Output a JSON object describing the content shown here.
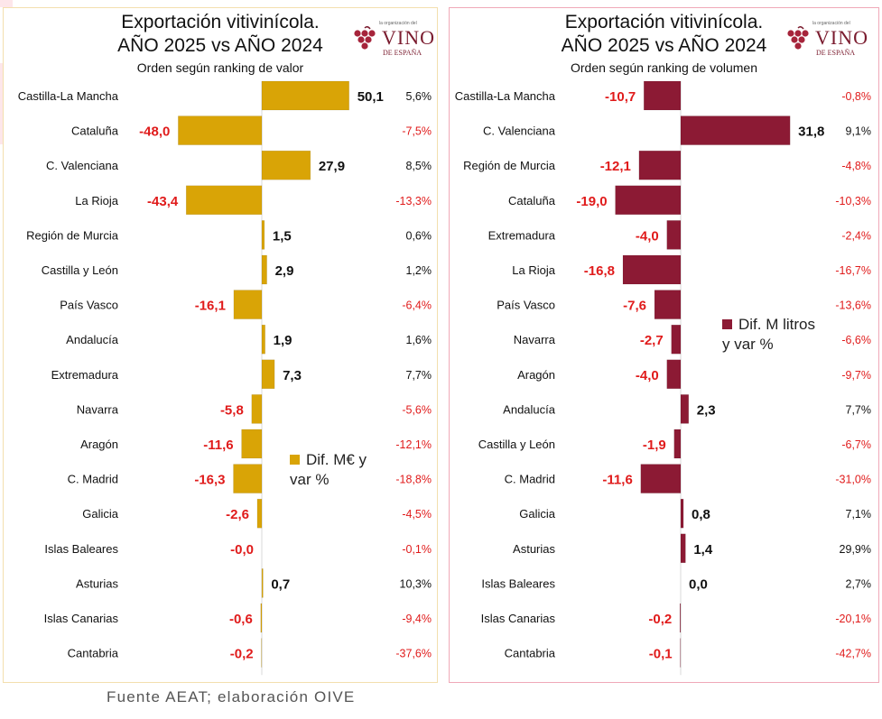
{
  "source": "Fuente AEAT; elaboración OIVE",
  "logo": {
    "small_text": "la organización del",
    "main": "VINO",
    "sub": "DE ESPAÑA"
  },
  "colors": {
    "gold": "#d9a406",
    "wine": "#8c1a34",
    "negative": "#e01b1b",
    "text": "#111111"
  },
  "chart_data": [
    {
      "type": "bar",
      "orientation": "horizontal",
      "title": "Exportación vitivinícola.",
      "title_line2": "AÑO 2025 vs AÑO 2024",
      "subtitle": "Orden según ranking de valor",
      "series_name": "Dif. M€ y var %",
      "categories": [
        "Castilla-La Mancha",
        "Cataluña",
        "C. Valenciana",
        "La Rioja",
        "Región de Murcia",
        "Castilla y León",
        "País Vasco",
        "Andalucía",
        "Extremadura",
        "Navarra",
        "Aragón",
        "C. Madrid",
        "Galicia",
        "Islas Baleares",
        "Asturias",
        "Islas Canarias",
        "Cantabria"
      ],
      "values": [
        50.1,
        -48.0,
        27.9,
        -43.4,
        1.5,
        2.9,
        -16.1,
        1.9,
        7.3,
        -5.8,
        -11.6,
        -16.3,
        -2.6,
        -0.0,
        0.7,
        -0.6,
        -0.2
      ],
      "value_labels": [
        "50,1",
        "-48,0",
        "27,9",
        "-43,4",
        "1,5",
        "2,9",
        "-16,1",
        "1,9",
        "7,3",
        "-5,8",
        "-11,6",
        "-16,3",
        "-2,6",
        "-0,0",
        "0,7",
        "-0,6",
        "-0,2"
      ],
      "pct_labels": [
        "5,6%",
        "-7,5%",
        "8,5%",
        "-13,3%",
        "0,6%",
        "1,2%",
        "-6,4%",
        "1,6%",
        "7,7%",
        "-5,6%",
        "-12,1%",
        "-18,8%",
        "-4,5%",
        "-0,1%",
        "10,3%",
        "-9,4%",
        "-37,6%"
      ]
    },
    {
      "type": "bar",
      "orientation": "horizontal",
      "title": "Exportación vitivinícola.",
      "title_line2": "AÑO 2025 vs AÑO 2024",
      "subtitle": "Orden según ranking de volumen",
      "series_name": "Dif. M litros y var %",
      "categories": [
        "Castilla-La Mancha",
        "C. Valenciana",
        "Región de Murcia",
        "Cataluña",
        "Extremadura",
        "La Rioja",
        "País Vasco",
        "Navarra",
        "Aragón",
        "Andalucía",
        "Castilla y León",
        "C. Madrid",
        "Galicia",
        "Asturias",
        "Islas Baleares",
        "Islas Canarias",
        "Cantabria"
      ],
      "values": [
        -10.7,
        31.8,
        -12.1,
        -19.0,
        -4.0,
        -16.8,
        -7.6,
        -2.7,
        -4.0,
        2.3,
        -1.9,
        -11.6,
        0.8,
        1.4,
        0.0,
        -0.2,
        -0.1
      ],
      "value_labels": [
        "-10,7",
        "31,8",
        "-12,1",
        "-19,0",
        "-4,0",
        "-16,8",
        "-7,6",
        "-2,7",
        "-4,0",
        "2,3",
        "-1,9",
        "-11,6",
        "0,8",
        "1,4",
        "0,0",
        "-0,2",
        "-0,1"
      ],
      "pct_labels": [
        "-0,8%",
        "9,1%",
        "-4,8%",
        "-10,3%",
        "-2,4%",
        "-16,7%",
        "-13,6%",
        "-6,6%",
        "-9,7%",
        "7,7%",
        "-6,7%",
        "-31,0%",
        "7,1%",
        "29,9%",
        "2,7%",
        "-20,1%",
        "-42,7%"
      ]
    }
  ]
}
